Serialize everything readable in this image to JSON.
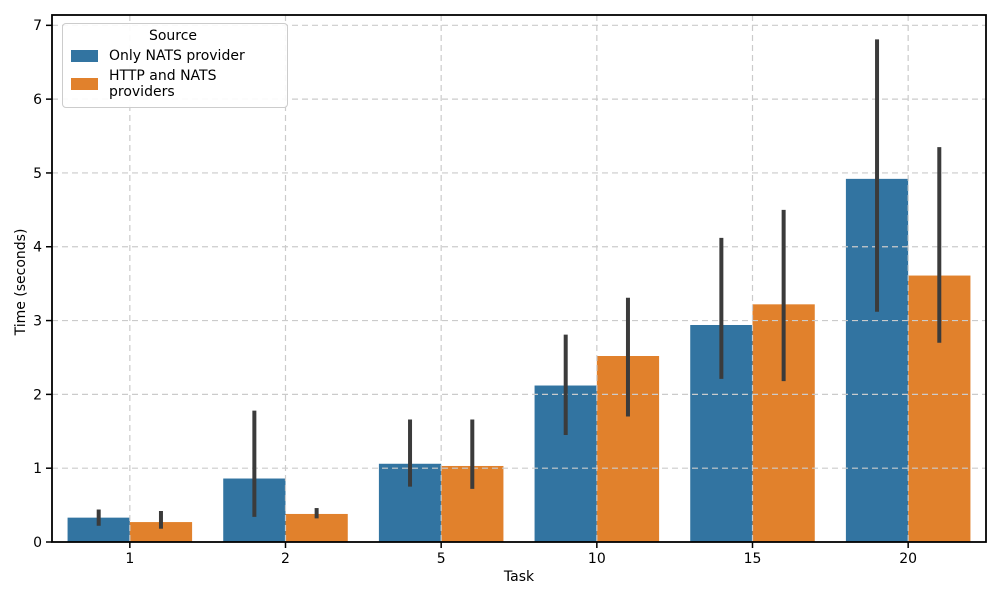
{
  "chart_data": {
    "type": "bar",
    "title": "",
    "xlabel": "Task",
    "ylabel": "Time (seconds)",
    "categories": [
      "1",
      "2",
      "5",
      "10",
      "15",
      "20"
    ],
    "series": [
      {
        "name": "Only NATS provider",
        "color": "#3274a1",
        "values": [
          0.33,
          0.86,
          1.06,
          2.12,
          2.94,
          4.92
        ],
        "err_low": [
          0.22,
          0.34,
          0.75,
          1.45,
          2.21,
          3.12
        ],
        "err_high": [
          0.44,
          1.78,
          1.66,
          2.81,
          4.12,
          6.81
        ]
      },
      {
        "name": "HTTP and NATS providers",
        "color": "#e1812c",
        "values": [
          0.27,
          0.38,
          1.03,
          2.52,
          3.22,
          3.61
        ],
        "err_low": [
          0.18,
          0.32,
          0.72,
          1.7,
          2.18,
          2.7
        ],
        "err_high": [
          0.42,
          0.46,
          1.66,
          3.31,
          4.5,
          5.35
        ]
      }
    ],
    "yticks": [
      0,
      1,
      2,
      3,
      4,
      5,
      6,
      7
    ],
    "ylim": [
      0,
      7.14
    ],
    "legend": {
      "title": "Source",
      "position": "upper-left"
    },
    "grid": true,
    "grid_style": "dashed",
    "grid_color": "#cbcbcb",
    "errorbar_color": "#3b3b3b",
    "spine_color": "#000000",
    "text_color": "#000000"
  }
}
